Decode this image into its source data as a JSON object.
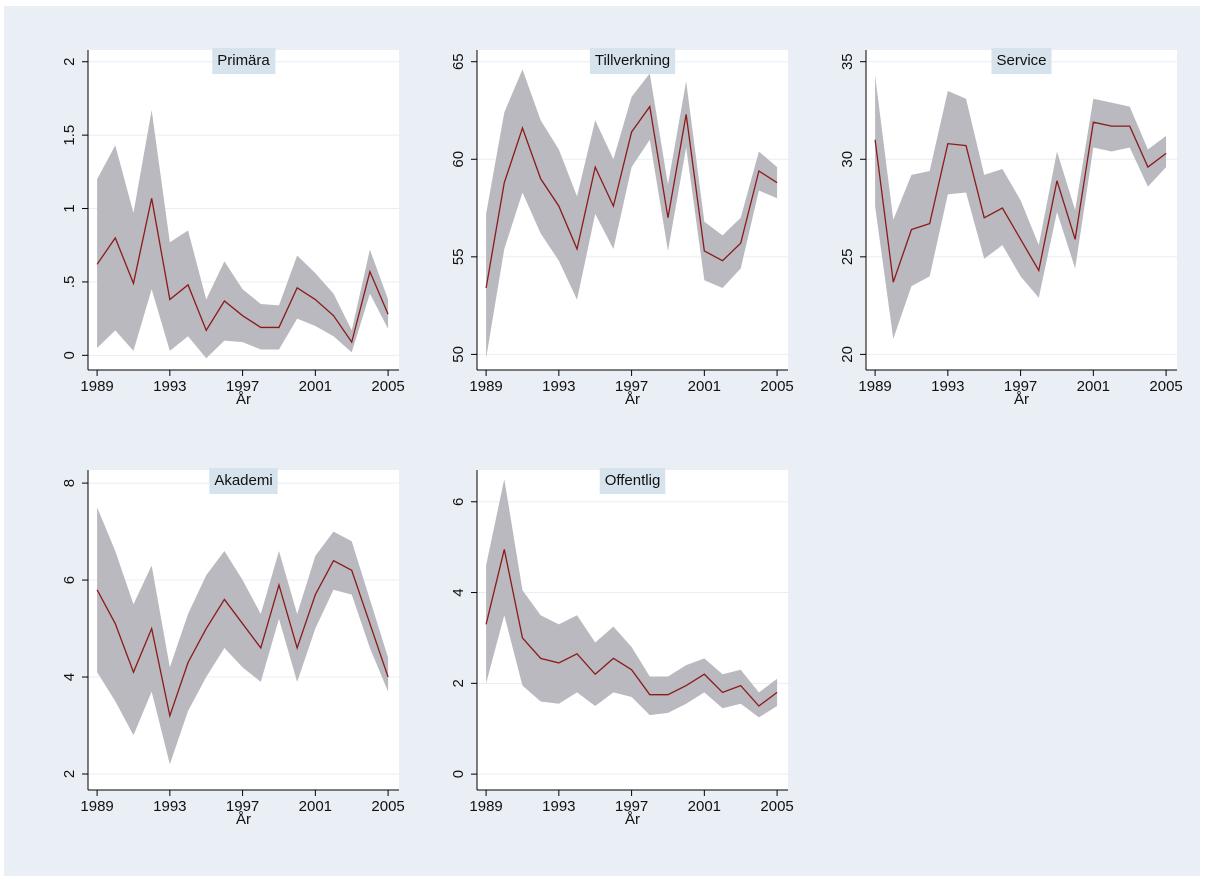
{
  "chart_data": [
    {
      "type": "line",
      "title": "Primära",
      "xlabel": "År",
      "color": "#8b1a1a",
      "band_color": "#b9b9bf",
      "grid": true,
      "x": [
        1989,
        1990,
        1991,
        1992,
        1993,
        1994,
        1995,
        1996,
        1997,
        1998,
        1999,
        2000,
        2001,
        2002,
        2003,
        2004,
        2005
      ],
      "values": [
        0.62,
        0.8,
        0.49,
        1.07,
        0.38,
        0.48,
        0.17,
        0.37,
        0.27,
        0.19,
        0.19,
        0.46,
        0.38,
        0.27,
        0.09,
        0.57,
        0.28
      ],
      "ci_upper": [
        1.2,
        1.43,
        0.97,
        1.67,
        0.77,
        0.85,
        0.38,
        0.64,
        0.45,
        0.35,
        0.34,
        0.68,
        0.56,
        0.42,
        0.17,
        0.72,
        0.38
      ],
      "ci_lower": [
        0.05,
        0.17,
        0.03,
        0.45,
        0.03,
        0.13,
        -0.02,
        0.1,
        0.09,
        0.04,
        0.04,
        0.25,
        0.2,
        0.13,
        0.02,
        0.42,
        0.18
      ],
      "xlim": [
        1988.5,
        2005.6
      ],
      "xticks": [
        1989,
        1993,
        1997,
        2001,
        2005
      ],
      "ylim": [
        -0.1,
        2.08
      ],
      "yticks": [
        0,
        {
          "value": 0.5,
          "label": ".5"
        },
        1,
        1.5,
        2
      ]
    },
    {
      "type": "line",
      "title": "Tillverkning",
      "xlabel": "År",
      "color": "#8b1a1a",
      "band_color": "#b9b9bf",
      "grid": true,
      "x": [
        1989,
        1990,
        1991,
        1992,
        1993,
        1994,
        1995,
        1996,
        1997,
        1998,
        1999,
        2000,
        2001,
        2002,
        2003,
        2004,
        2005
      ],
      "values": [
        53.4,
        58.8,
        61.6,
        59.0,
        57.6,
        55.4,
        59.6,
        57.6,
        61.4,
        62.7,
        57.0,
        62.3,
        55.3,
        54.8,
        55.7,
        59.4,
        58.8
      ],
      "ci_upper": [
        57.2,
        62.4,
        64.6,
        62.0,
        60.5,
        58.1,
        62.0,
        60.0,
        63.2,
        64.4,
        58.7,
        64.0,
        56.8,
        56.1,
        57.0,
        60.4,
        59.6
      ],
      "ci_lower": [
        49.8,
        55.4,
        58.3,
        56.2,
        54.8,
        52.8,
        57.2,
        55.4,
        59.6,
        61.0,
        55.3,
        60.6,
        53.8,
        53.4,
        54.4,
        58.4,
        58.0
      ],
      "xlim": [
        1988.5,
        2005.6
      ],
      "xticks": [
        1989,
        1993,
        1997,
        2001,
        2005
      ],
      "ylim": [
        49.2,
        65.6
      ],
      "yticks": [
        50,
        55,
        60,
        65
      ]
    },
    {
      "type": "line",
      "title": "Service",
      "xlabel": "År",
      "color": "#8b1a1a",
      "band_color": "#b9b9bf",
      "grid": true,
      "x": [
        1989,
        1990,
        1991,
        1992,
        1993,
        1994,
        1995,
        1996,
        1997,
        1998,
        1999,
        2000,
        2001,
        2002,
        2003,
        2004,
        2005
      ],
      "values": [
        31.0,
        23.7,
        26.4,
        26.7,
        30.8,
        30.7,
        27.0,
        27.5,
        25.9,
        24.3,
        28.9,
        25.9,
        31.9,
        31.7,
        31.7,
        29.6,
        30.3
      ],
      "ci_upper": [
        34.3,
        26.9,
        29.2,
        29.4,
        33.5,
        33.1,
        29.2,
        29.5,
        27.9,
        25.6,
        30.4,
        27.4,
        33.1,
        32.9,
        32.7,
        30.5,
        31.2
      ],
      "ci_lower": [
        27.6,
        20.8,
        23.5,
        24.0,
        28.2,
        28.3,
        24.9,
        25.6,
        24.0,
        22.9,
        27.3,
        24.4,
        30.6,
        30.4,
        30.6,
        28.6,
        29.6
      ],
      "xlim": [
        1988.5,
        2005.6
      ],
      "xticks": [
        1989,
        1993,
        1997,
        2001,
        2005
      ],
      "ylim": [
        19.2,
        35.6
      ],
      "yticks": [
        20,
        25,
        30,
        35
      ]
    },
    {
      "type": "line",
      "title": "Akademi",
      "xlabel": "År",
      "color": "#8b1a1a",
      "band_color": "#b9b9bf",
      "grid": true,
      "x": [
        1989,
        1990,
        1991,
        1992,
        1993,
        1994,
        1995,
        1996,
        1997,
        1998,
        1999,
        2000,
        2001,
        2002,
        2003,
        2004,
        2005
      ],
      "values": [
        5.8,
        5.1,
        4.1,
        5.0,
        3.2,
        4.3,
        5.0,
        5.6,
        5.1,
        4.6,
        5.9,
        4.6,
        5.7,
        6.4,
        6.2,
        5.1,
        4.0
      ],
      "ci_upper": [
        7.5,
        6.6,
        5.5,
        6.3,
        4.2,
        5.3,
        6.1,
        6.6,
        6.0,
        5.3,
        6.6,
        5.3,
        6.5,
        7.0,
        6.8,
        5.6,
        4.4
      ],
      "ci_lower": [
        4.1,
        3.5,
        2.8,
        3.7,
        2.2,
        3.3,
        4.0,
        4.6,
        4.2,
        3.9,
        5.2,
        3.9,
        5.0,
        5.8,
        5.7,
        4.6,
        3.7
      ],
      "xlim": [
        1988.5,
        2005.6
      ],
      "xticks": [
        1989,
        1993,
        1997,
        2001,
        2005
      ],
      "ylim": [
        1.67,
        8.27
      ],
      "yticks": [
        2,
        4,
        6,
        8
      ]
    },
    {
      "type": "line",
      "title": "Offentlig",
      "xlabel": "År",
      "color": "#8b1a1a",
      "band_color": "#b9b9bf",
      "grid": true,
      "x": [
        1989,
        1990,
        1991,
        1992,
        1993,
        1994,
        1995,
        1996,
        1997,
        1998,
        1999,
        2000,
        2001,
        2002,
        2003,
        2004,
        2005
      ],
      "values": [
        3.3,
        4.95,
        3.0,
        2.55,
        2.45,
        2.65,
        2.2,
        2.55,
        2.3,
        1.75,
        1.75,
        1.95,
        2.2,
        1.8,
        1.95,
        1.5,
        1.8
      ],
      "ci_upper": [
        4.6,
        6.5,
        4.05,
        3.5,
        3.3,
        3.5,
        2.9,
        3.25,
        2.8,
        2.15,
        2.15,
        2.4,
        2.55,
        2.2,
        2.3,
        1.8,
        2.1
      ],
      "ci_lower": [
        2.0,
        3.5,
        1.95,
        1.6,
        1.55,
        1.8,
        1.5,
        1.8,
        1.7,
        1.3,
        1.35,
        1.55,
        1.8,
        1.45,
        1.55,
        1.25,
        1.5
      ],
      "xlim": [
        1988.5,
        2005.6
      ],
      "xticks": [
        1989,
        1993,
        1997,
        2001,
        2005
      ],
      "ylim": [
        -0.35,
        6.7
      ],
      "yticks": [
        0,
        2,
        4,
        6
      ]
    }
  ]
}
